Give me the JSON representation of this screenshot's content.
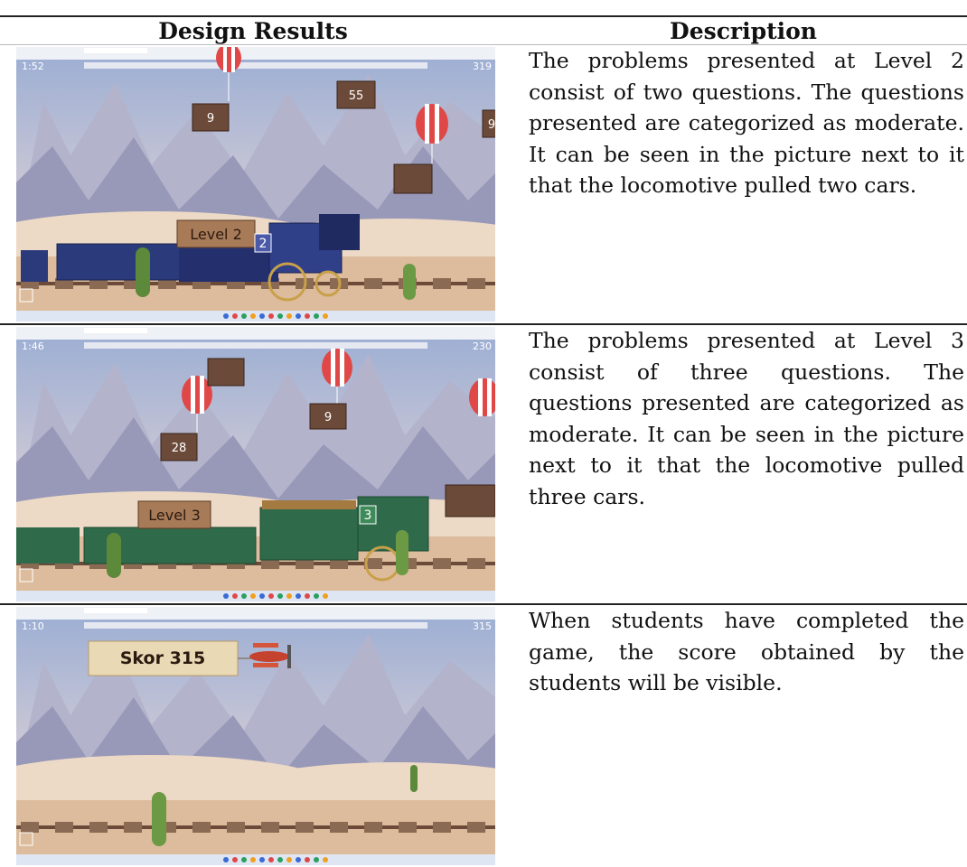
{
  "table": {
    "headers": [
      "Design Results",
      "Description"
    ],
    "rows": [
      {
        "screenshot": {
          "timer": "1:52",
          "score": "319",
          "boxes": [
            "9",
            "55",
            "9"
          ],
          "level": "Level 2",
          "car": "2"
        },
        "description": "The problems presented at Level 2 consist of two questions. The questions presented are categorized as moderate. It can be seen in the picture next to it that the locomotive pulled two cars."
      },
      {
        "screenshot": {
          "timer": "1:46",
          "score": "230",
          "boxes": [
            "28",
            "9"
          ],
          "level": "Level 3",
          "car": "3"
        },
        "description": "The problems presented at Level 3 consist of three questions. The questions presented are categorized as moderate. It can be seen in the picture next to it that the locomotive pulled three cars."
      },
      {
        "screenshot": {
          "timer": "1:10",
          "score": "315",
          "banner": "Skor 315"
        },
        "description": "When students have completed the game, the score obtained by the students will be visible."
      }
    ]
  }
}
